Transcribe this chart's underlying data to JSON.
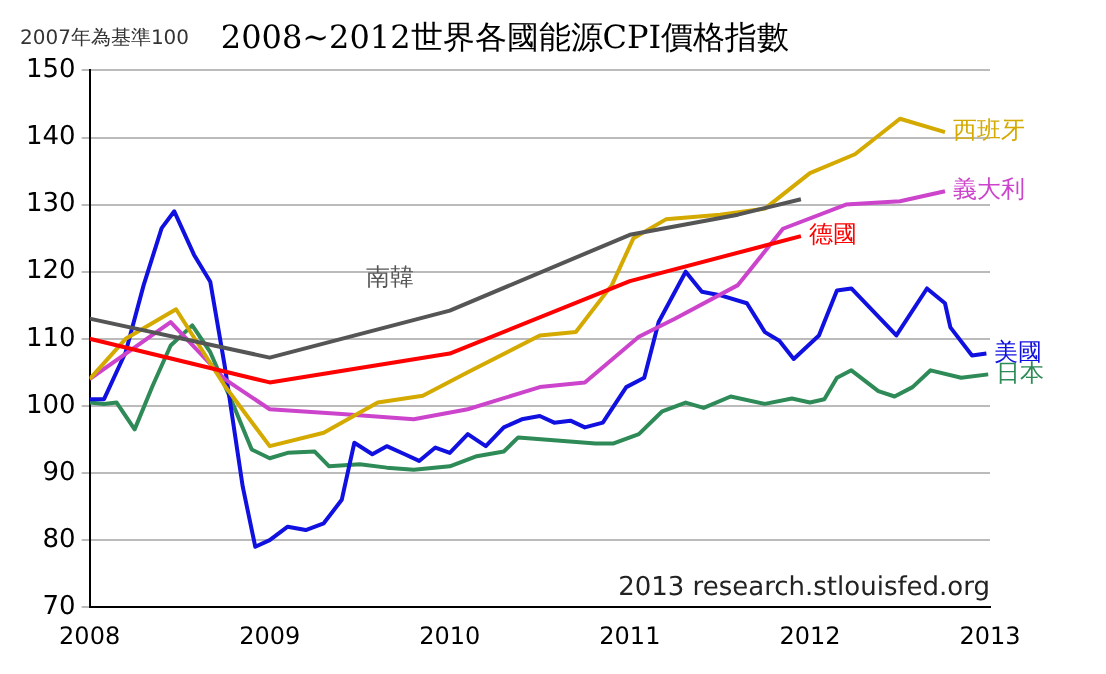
{
  "chart_data": {
    "type": "line",
    "title": "2008~2012世界各國能源CPI價格指數",
    "annotations": [
      "2007年為基準100",
      "2013 research.stlouisfed.org"
    ],
    "xlim": [
      2008,
      2013
    ],
    "xticks": [
      2008,
      2009,
      2010,
      2011,
      2012,
      2013
    ],
    "ylim": [
      70,
      150
    ],
    "yticks": [
      70,
      80,
      90,
      100,
      110,
      120,
      130,
      140,
      150
    ],
    "grid": "y",
    "legend": false,
    "marker": "none",
    "line_style": "solid",
    "series": [
      {
        "name": "南韓",
        "color": "#555555",
        "x": [
          2008,
          2009,
          2010,
          2011,
          2011.6,
          2011.95
        ],
        "values": [
          113,
          107.2,
          114.2,
          125.5,
          128.5,
          130.8
        ]
      },
      {
        "name": "德國",
        "color": "#ff0000",
        "x": [
          2008,
          2009,
          2010,
          2011,
          2011.95
        ],
        "values": [
          110,
          103.5,
          107.8,
          118.6,
          125.3
        ]
      },
      {
        "name": "西班牙",
        "color": "#d4aa00",
        "x": [
          2008,
          2008.2,
          2008.48,
          2008.75,
          2009,
          2009.3,
          2009.6,
          2009.85,
          2010.1,
          2010.5,
          2010.7,
          2010.9,
          2011.02,
          2011.2,
          2011.5,
          2011.75,
          2012,
          2012.25,
          2012.5,
          2012.75
        ],
        "values": [
          104,
          110,
          114.4,
          103,
          94,
          96,
          100.5,
          101.5,
          105,
          110.5,
          111,
          118,
          125,
          127.8,
          128.5,
          129.4,
          134.7,
          137.5,
          142.8,
          140.8
        ]
      },
      {
        "name": "義大利",
        "color": "#cc44cc",
        "x": [
          2008,
          2008.45,
          2008.75,
          2009,
          2009.4,
          2009.8,
          2010.1,
          2010.5,
          2010.75,
          2011.05,
          2011.25,
          2011.6,
          2011.85,
          2012.2,
          2012.5,
          2012.75
        ],
        "values": [
          104,
          112.5,
          104,
          99.5,
          98.8,
          98,
          99.5,
          102.8,
          103.5,
          110.3,
          113,
          118,
          126.4,
          130,
          130.5,
          132
        ]
      },
      {
        "name": "美國",
        "color": "#1010e0",
        "x": [
          2008,
          2008.08,
          2008.2,
          2008.3,
          2008.4,
          2008.47,
          2008.58,
          2008.67,
          2008.75,
          2008.85,
          2008.92,
          2009,
          2009.1,
          2009.2,
          2009.3,
          2009.4,
          2009.47,
          2009.57,
          2009.65,
          2009.75,
          2009.83,
          2009.92,
          2010,
          2010.1,
          2010.2,
          2010.3,
          2010.4,
          2010.5,
          2010.58,
          2010.67,
          2010.75,
          2010.85,
          2010.98,
          2011.08,
          2011.16,
          2011.31,
          2011.4,
          2011.5,
          2011.65,
          2011.75,
          2011.83,
          2011.91,
          2012.05,
          2012.15,
          2012.23,
          2012.48,
          2012.65,
          2012.75,
          2012.78,
          2012.9,
          2012.98
        ],
        "values": [
          101,
          101,
          108,
          118,
          126.5,
          129,
          122.5,
          118.5,
          106,
          88,
          79,
          80,
          82,
          81.5,
          82.5,
          86,
          94.5,
          92.8,
          94,
          92.8,
          91.8,
          93.8,
          93,
          95.8,
          94,
          96.8,
          98,
          98.5,
          97.5,
          97.8,
          96.8,
          97.5,
          102.8,
          104.2,
          112.5,
          120,
          117,
          116.5,
          115.3,
          111,
          109.7,
          107,
          110.5,
          117.2,
          117.5,
          110.5,
          117.5,
          115.3,
          111.7,
          107.5,
          107.8
        ]
      },
      {
        "name": "日本",
        "color": "#2e8b57",
        "x": [
          2008,
          2008.08,
          2008.15,
          2008.25,
          2008.35,
          2008.45,
          2008.57,
          2008.67,
          2008.8,
          2008.9,
          2009,
          2009.1,
          2009.25,
          2009.33,
          2009.5,
          2009.65,
          2009.8,
          2010,
          2010.15,
          2010.3,
          2010.38,
          2010.81,
          2010.91,
          2011.05,
          2011.18,
          2011.31,
          2011.41,
          2011.56,
          2011.75,
          2011.9,
          2012,
          2012.08,
          2012.15,
          2012.23,
          2012.38,
          2012.47,
          2012.57,
          2012.67,
          2012.84,
          2012.99
        ],
        "values": [
          100.5,
          100.3,
          100.5,
          96.5,
          103,
          109,
          112,
          108,
          100,
          93.5,
          92.2,
          93,
          93.2,
          91,
          91.3,
          90.8,
          90.5,
          91,
          92.5,
          93.2,
          95.3,
          94.4,
          94.4,
          95.8,
          99.2,
          100.5,
          99.7,
          101.4,
          100.3,
          101.1,
          100.5,
          101,
          104.2,
          105.3,
          102.2,
          101.4,
          102.8,
          105.3,
          104.2,
          104.7
        ]
      }
    ]
  }
}
